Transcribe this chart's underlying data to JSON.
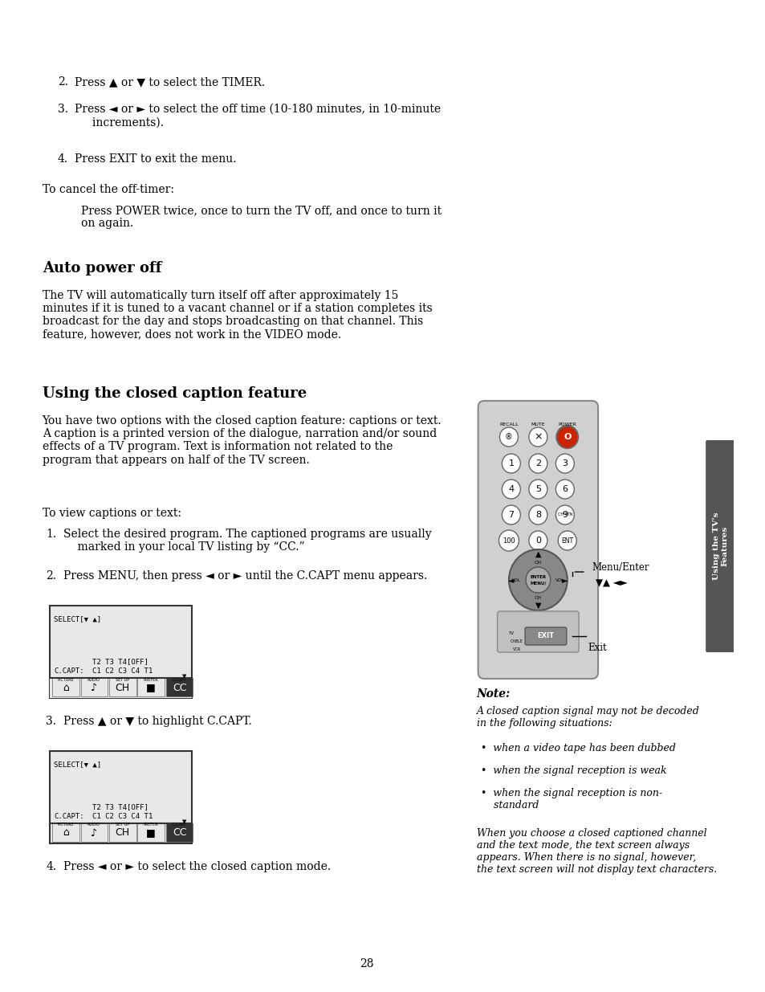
{
  "bg_color": "#ffffff",
  "text_color": "#000000",
  "page_number": "28",
  "sidebar_color": "#555555",
  "sidebar_text": "Using the TV's\nFeatures",
  "section1_items": [
    "2. Press ▲ or ▼ to select the TIMER.",
    "3. Press ◄ or ► to select the off time (10-180 minutes, in 10-minute\n     increments).",
    "4. Press EXIT to exit the menu."
  ],
  "cancel_text": "To cancel the off-timer:",
  "cancel_indent": "Press POWER twice, once to turn the TV off, and once to turn it\non again.",
  "auto_power_title": "Auto power off",
  "auto_power_body": "The TV will automatically turn itself off after approximately 15\nminutes if it is tuned to a vacant channel or if a station completes its\nbroadcast for the day and stops broadcasting on that channel. This\nfeature, however, does not work in the VIDEO mode.",
  "closed_caption_title": "Using the closed caption feature",
  "cc_body1": "You have two options with the closed caption feature: captions or text.\nA caption is a printed version of the dialogue, narration and/or sound\neffects of a TV program. Text is information not related to the\nprogram that appears on half of the TV screen.",
  "cc_to_view": "To view captions or text:",
  "cc_steps": [
    "1. Select the desired program. The captioned programs are usually\n    marked in your local TV listing by “CC.”",
    "2. Press MENU, then press ◄ or ► until the C.CAPT menu appears."
  ],
  "cc_step3": "3. Press ▲ or ▼ to highlight C.CAPT.",
  "cc_step4": "4. Press ◄ or ► to select the closed caption mode.",
  "note_title": "Note:",
  "note_body": "A closed caption signal may not be decoded\nin the following situations:",
  "note_bullets": [
    "•  when a video tape has been dubbed",
    "•  when the signal reception is weak",
    "•  when the signal reception is non-\n    standard"
  ],
  "note_footer": "When you choose a closed captioned channel\nand the text mode, the text screen always\nappears. When there is no signal, however,\nthe text screen will not display text characters.",
  "menu_label1": "Menu/Enter",
  "menu_label2": "▼▲ ◄►",
  "exit_label": "Exit"
}
